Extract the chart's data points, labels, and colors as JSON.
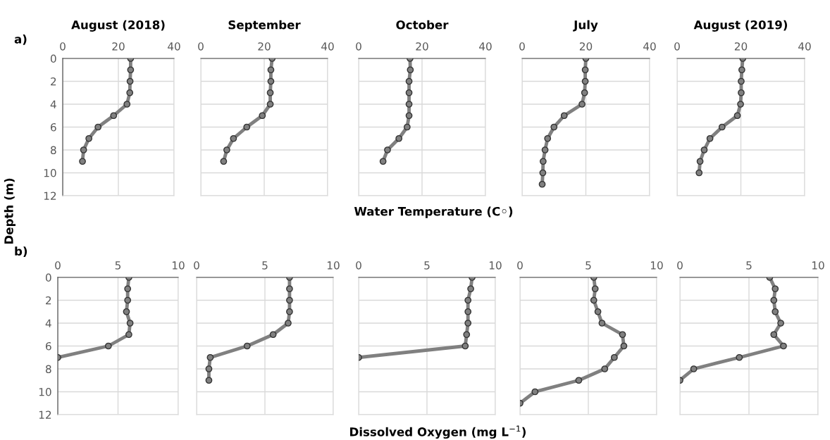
{
  "chart_data": [
    {
      "type": "line",
      "title": "August (2018)",
      "annotations": [
        "a)"
      ],
      "ylabel": "Depth (m)",
      "xlim": [
        0,
        40
      ],
      "xticks": [
        0,
        20,
        40
      ],
      "ylim": [
        12,
        0
      ],
      "yticks": [
        0,
        2,
        4,
        6,
        8,
        10,
        12
      ],
      "grid": true,
      "marker": "circle",
      "line_style": "solid",
      "series": [
        {
          "color": "#808080",
          "x": [
            24.4,
            24.4,
            24.2,
            24.1,
            23.1,
            18.3,
            12.7,
            9.4,
            7.5,
            7.1
          ],
          "values": [
            0,
            1,
            2,
            3,
            4,
            5,
            6,
            7,
            8,
            9
          ]
        }
      ]
    },
    {
      "type": "line",
      "title": "September",
      "xlim": [
        0,
        40
      ],
      "xticks": [
        0,
        20,
        40
      ],
      "ylim": [
        12,
        0
      ],
      "yticks": [
        0,
        2,
        4,
        6,
        8,
        10,
        12
      ],
      "tick_labels": "x",
      "grid": true,
      "marker": "circle",
      "line_style": "solid",
      "series": [
        {
          "color": "#808080",
          "x": [
            22.5,
            22.1,
            22.1,
            21.9,
            21.9,
            19.4,
            14.5,
            10.3,
            8.2,
            7.2
          ],
          "values": [
            0,
            1,
            2,
            3,
            4,
            5,
            6,
            7,
            8,
            9
          ]
        }
      ]
    },
    {
      "type": "line",
      "title": "October",
      "xlabel": "Water Temperature (C◦)",
      "xlim": [
        0,
        40
      ],
      "xticks": [
        0,
        20,
        40
      ],
      "ylim": [
        12,
        0
      ],
      "yticks": [
        0,
        2,
        4,
        6,
        8,
        10,
        12
      ],
      "tick_labels": "x",
      "grid": true,
      "marker": "circle",
      "line_style": "solid",
      "series": [
        {
          "color": "#808080",
          "x": [
            16.2,
            16.3,
            15.9,
            15.9,
            15.9,
            15.9,
            15.3,
            12.7,
            9.1,
            7.7
          ],
          "values": [
            0,
            1,
            2,
            3,
            4,
            5,
            6,
            7,
            8,
            9
          ]
        }
      ]
    },
    {
      "type": "line",
      "title": "July",
      "xlim": [
        0,
        40
      ],
      "xticks": [
        0,
        20,
        40
      ],
      "ylim": [
        12,
        0
      ],
      "yticks": [
        0,
        2,
        4,
        6,
        8,
        10,
        12
      ],
      "tick_labels": "x",
      "grid": true,
      "marker": "circle",
      "line_style": "solid",
      "series": [
        {
          "color": "#808080",
          "x": [
            20.0,
            19.8,
            19.8,
            19.6,
            18.8,
            13.2,
            10.0,
            8.0,
            7.2,
            6.6,
            6.5,
            6.3
          ],
          "values": [
            0,
            1,
            2,
            3,
            4,
            5,
            6,
            7,
            8,
            9,
            10,
            11
          ]
        }
      ]
    },
    {
      "type": "line",
      "title": "August (2019)",
      "xlim": [
        0,
        40
      ],
      "xticks": [
        0,
        20,
        40
      ],
      "ylim": [
        12,
        0
      ],
      "yticks": [
        0,
        2,
        4,
        6,
        8,
        10,
        12
      ],
      "tick_labels": "x",
      "grid": true,
      "marker": "circle",
      "line_style": "solid",
      "series": [
        {
          "color": "#808080",
          "x": [
            20.6,
            20.3,
            20.1,
            20.1,
            19.9,
            18.9,
            14.1,
            10.3,
            8.5,
            7.2,
            6.9
          ],
          "values": [
            0,
            1,
            2,
            3,
            4,
            5,
            6,
            7,
            8,
            9,
            10
          ]
        }
      ]
    },
    {
      "type": "line",
      "annotations": [
        "b)"
      ],
      "xlim": [
        0,
        10
      ],
      "xticks": [
        0,
        5,
        10
      ],
      "ylim": [
        12,
        0
      ],
      "yticks": [
        0,
        2,
        4,
        6,
        8,
        10,
        12
      ],
      "grid": true,
      "marker": "circle",
      "line_style": "solid",
      "series": [
        {
          "color": "#808080",
          "x": [
            5.9,
            5.8,
            5.8,
            5.7,
            6.0,
            5.9,
            4.2,
            0.0
          ],
          "values": [
            0,
            1,
            2,
            3,
            4,
            5,
            6,
            7
          ]
        }
      ]
    },
    {
      "type": "line",
      "xlim": [
        0,
        10
      ],
      "xticks": [
        0,
        5,
        10
      ],
      "ylim": [
        12,
        0
      ],
      "yticks": [
        0,
        2,
        4,
        6,
        8,
        10,
        12
      ],
      "tick_labels": "x",
      "grid": true,
      "marker": "circle",
      "line_style": "solid",
      "series": [
        {
          "color": "#808080",
          "x": [
            6.8,
            6.8,
            6.8,
            6.8,
            6.7,
            5.6,
            3.7,
            1.0,
            0.9,
            0.9
          ],
          "values": [
            0,
            1,
            2,
            3,
            4,
            5,
            6,
            7,
            8,
            9
          ]
        }
      ]
    },
    {
      "type": "line",
      "xlabel": "Dissolved Oxygen (mg L$^{−1}$)",
      "xlim": [
        0,
        10
      ],
      "xticks": [
        0,
        5,
        10
      ],
      "ylim": [
        12,
        0
      ],
      "yticks": [
        0,
        2,
        4,
        6,
        8,
        10,
        12
      ],
      "tick_labels": "x",
      "grid": true,
      "marker": "circle",
      "line_style": "solid",
      "series": [
        {
          "color": "#808080",
          "x": [
            8.3,
            8.2,
            8.0,
            8.0,
            8.0,
            7.9,
            7.8,
            0.0
          ],
          "values": [
            0,
            1,
            2,
            3,
            4,
            5,
            6,
            7
          ]
        }
      ]
    },
    {
      "type": "line",
      "xlim": [
        0,
        10
      ],
      "xticks": [
        0,
        5,
        10
      ],
      "ylim": [
        12,
        0
      ],
      "yticks": [
        0,
        2,
        4,
        6,
        8,
        10,
        12
      ],
      "tick_labels": "x",
      "grid": true,
      "marker": "circle",
      "line_style": "solid",
      "series": [
        {
          "color": "#808080",
          "x": [
            5.4,
            5.5,
            5.4,
            5.7,
            6.0,
            7.5,
            7.6,
            6.9,
            6.2,
            4.3,
            1.1,
            0.0
          ],
          "values": [
            0,
            1,
            2,
            3,
            4,
            5,
            6,
            7,
            8,
            9,
            10,
            11
          ]
        }
      ]
    },
    {
      "type": "line",
      "xlim": [
        0,
        10
      ],
      "xticks": [
        0,
        5,
        10
      ],
      "ylim": [
        12,
        0
      ],
      "yticks": [
        0,
        2,
        4,
        6,
        8,
        10,
        12
      ],
      "tick_labels": "x",
      "grid": true,
      "marker": "circle",
      "line_style": "solid",
      "series": [
        {
          "color": "#808080",
          "x": [
            6.5,
            6.9,
            6.8,
            6.9,
            7.3,
            6.8,
            7.5,
            4.3,
            1.0,
            0.0
          ],
          "values": [
            0,
            1,
            2,
            3,
            4,
            5,
            6,
            7,
            8,
            9
          ]
        }
      ]
    }
  ]
}
